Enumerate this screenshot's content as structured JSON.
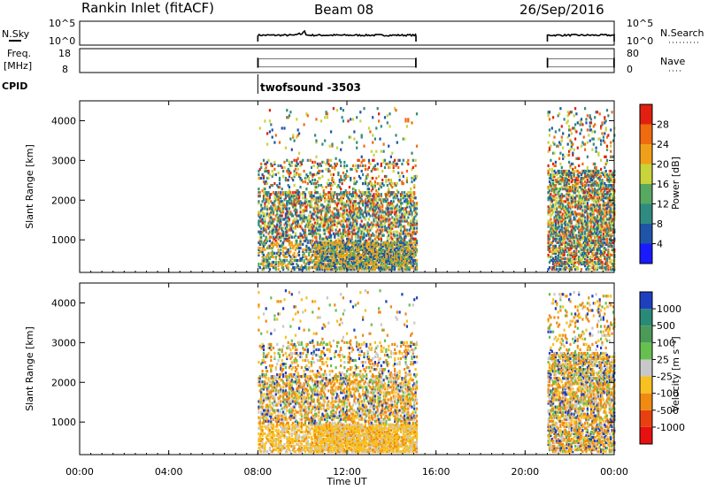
{
  "header": {
    "title": "Rankin Inlet (fitACF)",
    "beam": "Beam 08",
    "date": "26/Sep/2016"
  },
  "noise_panel": {
    "left_label": "N.Sky",
    "right_label": "N.Search",
    "left_ticks": [
      "10^5",
      "10^0"
    ],
    "right_ticks": [
      "10^5",
      "10^0"
    ]
  },
  "freq_panel": {
    "left_label_1": "Freq.",
    "left_label_2": "[MHz]",
    "right_label": "Nave",
    "left_ticks": [
      "18",
      "8"
    ],
    "right_ticks": [
      "80",
      "0"
    ]
  },
  "cpid": {
    "label": "CPID",
    "program": "twofsound -3503"
  },
  "time_axis": {
    "label": "Time UT",
    "ticks": [
      "00:00",
      "04:00",
      "08:00",
      "12:00",
      "16:00",
      "20:00",
      "00:00"
    ]
  },
  "colors": {
    "power_scale": [
      "#1a1aff",
      "#1e55a8",
      "#2f8a80",
      "#57a860",
      "#c8d43a",
      "#f0a018",
      "#f06a10",
      "#e22010"
    ],
    "velocity_scale": [
      "#1e40c0",
      "#2a8a78",
      "#4c9a58",
      "#66c050",
      "#c8c8c8",
      "#f8c020",
      "#f08a10",
      "#e84010",
      "#e81010"
    ]
  },
  "chart_data": [
    {
      "type": "heatmap",
      "panel": "power",
      "xlabel": "",
      "ylabel": "Slant Range [km]",
      "xlim": [
        0,
        24
      ],
      "ylim": [
        180,
        4500
      ],
      "yticks": [
        1000,
        2000,
        3000,
        4000
      ],
      "colorbar": {
        "label": "Power [dB]",
        "ticks": [
          4,
          8,
          12,
          16,
          20,
          24,
          28
        ],
        "range": [
          0,
          32
        ]
      },
      "data_intervals_hours": [
        [
          8.0,
          15.1
        ],
        [
          21.0,
          24.0
        ]
      ]
    },
    {
      "type": "heatmap",
      "panel": "velocity",
      "xlabel": "Time UT",
      "ylabel": "Slant Range [km]",
      "xlim": [
        0,
        24
      ],
      "ylim": [
        180,
        4500
      ],
      "yticks": [
        1000,
        2000,
        3000,
        4000
      ],
      "colorbar": {
        "label": "Velocity [m s⁻¹]",
        "ticks": [
          "1000",
          "500",
          "100",
          "25",
          "-25",
          "-100",
          "-500",
          "-1000"
        ]
      },
      "data_intervals_hours": [
        [
          8.0,
          15.1
        ],
        [
          21.0,
          24.0
        ]
      ]
    }
  ]
}
